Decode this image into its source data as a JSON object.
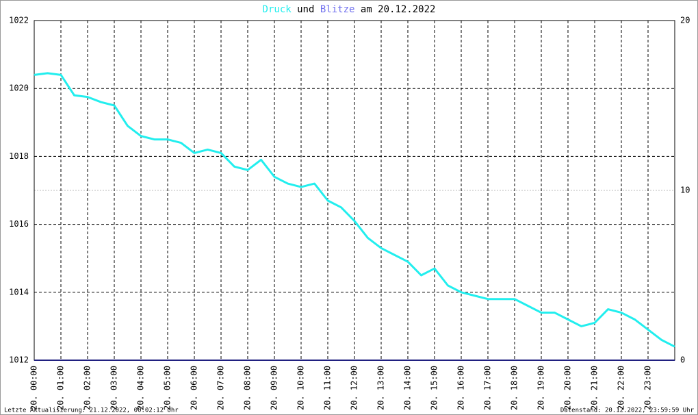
{
  "chart_data": {
    "type": "line",
    "title_and": "und",
    "title_date": "am 20.12.2022",
    "footer_left": "Letzte Aktualisierung: 21.12.2022, 00:02:12 Uhr",
    "footer_right": "Datenstand: 20.12.2022, 23:59:59 Uhr",
    "xlim": [
      0,
      24
    ],
    "xticks": [
      {
        "value": 0,
        "label": "20. 00:00"
      },
      {
        "value": 1,
        "label": "20. 01:00"
      },
      {
        "value": 2,
        "label": "20. 02:00"
      },
      {
        "value": 3,
        "label": "20. 03:00"
      },
      {
        "value": 4,
        "label": "20. 04:00"
      },
      {
        "value": 5,
        "label": "20. 05:00"
      },
      {
        "value": 6,
        "label": "20. 06:00"
      },
      {
        "value": 7,
        "label": "20. 07:00"
      },
      {
        "value": 8,
        "label": "20. 08:00"
      },
      {
        "value": 9,
        "label": "20. 09:00"
      },
      {
        "value": 10,
        "label": "20. 10:00"
      },
      {
        "value": 11,
        "label": "20. 11:00"
      },
      {
        "value": 12,
        "label": "20. 12:00"
      },
      {
        "value": 13,
        "label": "20. 13:00"
      },
      {
        "value": 14,
        "label": "20. 14:00"
      },
      {
        "value": 15,
        "label": "20. 15:00"
      },
      {
        "value": 16,
        "label": "20. 16:00"
      },
      {
        "value": 17,
        "label": "20. 17:00"
      },
      {
        "value": 18,
        "label": "20. 18:00"
      },
      {
        "value": 19,
        "label": "20. 19:00"
      },
      {
        "value": 20,
        "label": "20. 20:00"
      },
      {
        "value": 21,
        "label": "20. 21:00"
      },
      {
        "value": 22,
        "label": "20. 22:00"
      },
      {
        "value": 23,
        "label": "20. 23:00"
      }
    ],
    "ylim": [
      1012,
      1022
    ],
    "yticks": [
      1012,
      1014,
      1016,
      1018,
      1020,
      1022
    ],
    "y2lim": [
      0,
      20
    ],
    "y2ticks": [
      0,
      10,
      20
    ],
    "grid": true,
    "series": [
      {
        "name": "Druck",
        "color": "#22eeee",
        "x": [
          0,
          0.5,
          1,
          1.5,
          2,
          2.5,
          3,
          3.5,
          4,
          4.5,
          5,
          5.5,
          6,
          6.5,
          7,
          7.5,
          8,
          8.5,
          9,
          9.5,
          10,
          10.5,
          11,
          11.5,
          12,
          12.5,
          13,
          13.5,
          14,
          14.5,
          15,
          15.5,
          16,
          16.5,
          17,
          17.5,
          18,
          18.5,
          19,
          19.5,
          20,
          20.5,
          21,
          21.5,
          22,
          22.5,
          23,
          23.5,
          24
        ],
        "values": [
          1020.4,
          1020.45,
          1020.4,
          1019.8,
          1019.75,
          1019.6,
          1019.5,
          1018.9,
          1018.6,
          1018.5,
          1018.5,
          1018.4,
          1018.1,
          1018.2,
          1018.1,
          1017.7,
          1017.6,
          1017.9,
          1017.4,
          1017.2,
          1017.1,
          1017.2,
          1016.7,
          1016.5,
          1016.1,
          1015.6,
          1015.3,
          1015.1,
          1014.9,
          1014.5,
          1014.7,
          1014.2,
          1014.0,
          1013.9,
          1013.8,
          1013.8,
          1013.8,
          1013.6,
          1013.4,
          1013.4,
          1013.2,
          1013.0,
          1013.1,
          1013.5,
          1013.4,
          1013.2,
          1012.9,
          1012.6,
          1012.4
        ]
      },
      {
        "name": "Blitze",
        "color": "#7070ee",
        "line_color": "#202080",
        "axis": "y2",
        "x": [
          0,
          24
        ],
        "values": [
          0,
          0
        ]
      }
    ]
  }
}
